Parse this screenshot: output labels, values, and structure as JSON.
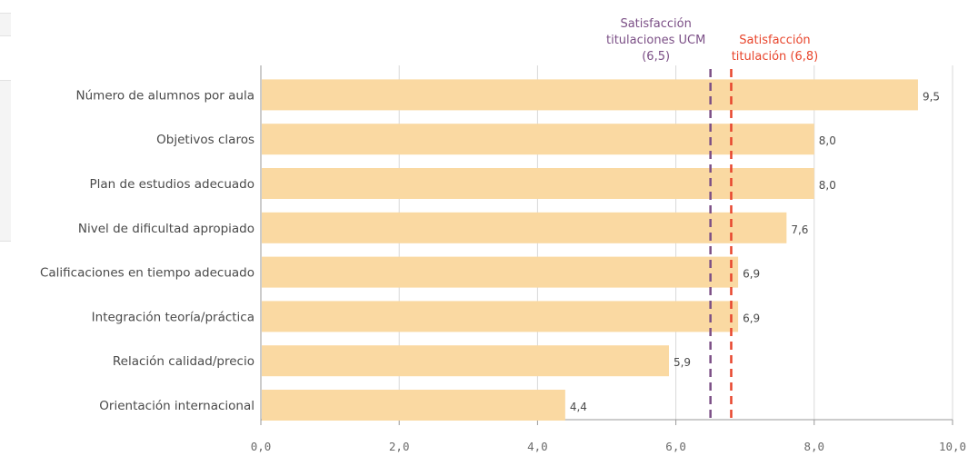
{
  "chart_data": {
    "type": "bar",
    "orientation": "horizontal",
    "categories": [
      "Número de alumnos por aula",
      "Objetivos claros",
      "Plan de estudios adecuado",
      "Nivel de dificultad apropiado",
      "Calificaciones en tiempo adecuado",
      "Integración teoría/práctica",
      "Relación calidad/precio",
      "Orientación internacional"
    ],
    "values": [
      9.5,
      8.0,
      8.0,
      7.6,
      6.9,
      6.9,
      5.9,
      4.4
    ],
    "value_labels": [
      "9,5",
      "8,0",
      "8,0",
      "7,6",
      "6,9",
      "6,9",
      "5,9",
      "4,4"
    ],
    "xlim": [
      0,
      10
    ],
    "x_ticks": [
      0,
      2,
      4,
      6,
      8,
      10
    ],
    "x_tick_labels": [
      "0,0",
      "2,0",
      "4,0",
      "6,0",
      "8,0",
      "10,0"
    ],
    "grid": true,
    "bar_color": "#fad9a2",
    "reference_lines": [
      {
        "lines": [
          "Satisfacción",
          "titulaciones UCM",
          "(6,5)"
        ],
        "value": 6.5,
        "color": "#7b4f86",
        "style": "dashed"
      },
      {
        "lines": [
          "Satisfacción",
          "titulación (6,8)"
        ],
        "value": 6.8,
        "color": "#e8452c",
        "style": "dashed"
      }
    ]
  }
}
